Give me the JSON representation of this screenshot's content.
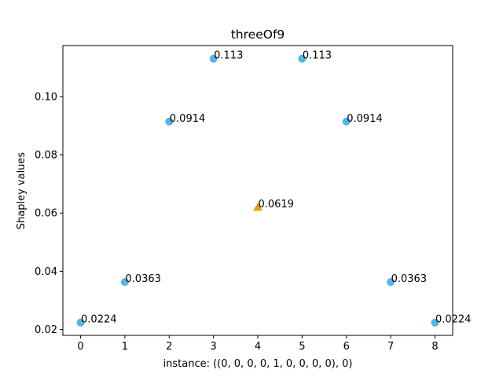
{
  "chart_data": {
    "type": "scatter",
    "title": "threeOf9",
    "xlabel": "instance: ((0, 0, 0, 0, 1, 0, 0, 0, 0), 0)",
    "ylabel": "Shapley values",
    "xlim": [
      -0.4,
      8.4
    ],
    "ylim": [
      0.018,
      0.1175
    ],
    "xticks": [
      "0",
      "1",
      "2",
      "3",
      "4",
      "5",
      "6",
      "7",
      "8"
    ],
    "yticks": [
      "0.02",
      "0.04",
      "0.06",
      "0.08",
      "0.10"
    ],
    "ytick_values": [
      0.02,
      0.04,
      0.06,
      0.08,
      0.1
    ],
    "grid": false,
    "colors": {
      "default": "#56B4E9",
      "highlight": "#E69F00"
    },
    "points": [
      {
        "x": 0,
        "y": 0.0224,
        "label": "0.0224",
        "marker": "circle"
      },
      {
        "x": 1,
        "y": 0.0363,
        "label": "0.0363",
        "marker": "circle"
      },
      {
        "x": 2,
        "y": 0.0914,
        "label": "0.0914",
        "marker": "circle"
      },
      {
        "x": 3,
        "y": 0.113,
        "label": "0.113",
        "marker": "circle"
      },
      {
        "x": 4,
        "y": 0.0619,
        "label": "0.0619",
        "marker": "triangle"
      },
      {
        "x": 5,
        "y": 0.113,
        "label": "0.113",
        "marker": "circle"
      },
      {
        "x": 6,
        "y": 0.0914,
        "label": "0.0914",
        "marker": "circle"
      },
      {
        "x": 7,
        "y": 0.0363,
        "label": "0.0363",
        "marker": "circle"
      },
      {
        "x": 8,
        "y": 0.0224,
        "label": "0.0224",
        "marker": "circle"
      }
    ]
  }
}
